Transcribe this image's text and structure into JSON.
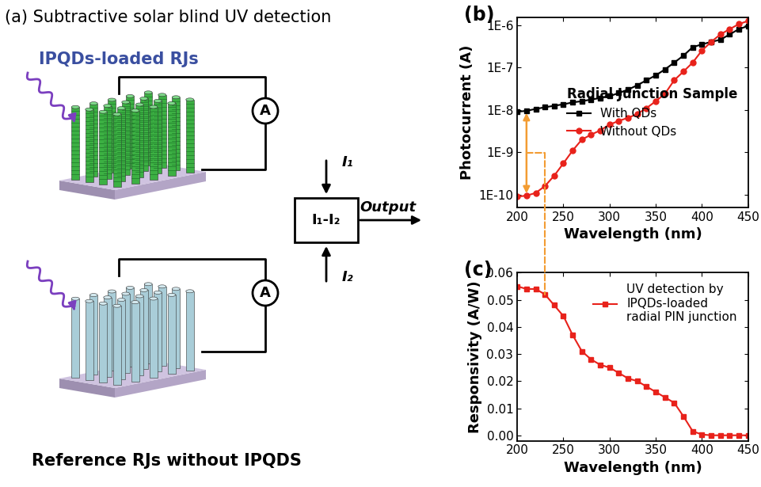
{
  "diagram": {
    "title": "(a) Subtractive solar blind UV detection",
    "top": {
      "label": "IPQDs-loaded RJs",
      "meter": "A",
      "current": "I₁"
    },
    "bottom": {
      "label": "Reference RJs without IPQDS",
      "meter": "A",
      "current": "I₂"
    },
    "box": "I₁-I₂",
    "output": "Output"
  },
  "chart_data": [
    {
      "type": "line",
      "panel": "(b)",
      "x_label": "Wavelength (nm)",
      "y_label": "Photocurrent (A)",
      "annotations": [
        "Radial Junction Sample"
      ],
      "log": "y",
      "x": [
        200,
        210,
        220,
        230,
        240,
        250,
        260,
        270,
        280,
        290,
        300,
        310,
        320,
        330,
        340,
        350,
        360,
        370,
        380,
        390,
        400,
        410,
        420,
        430,
        440,
        450
      ],
      "series": [
        {
          "name": "With QDs",
          "color": "#000000",
          "marker": "square",
          "line_style": "solid",
          "values": [
            9e-09,
            9.5e-09,
            1.05e-08,
            1.15e-08,
            1.25e-08,
            1.35e-08,
            1.5e-08,
            1.6e-08,
            1.75e-08,
            1.9e-08,
            2.1e-08,
            2.5e-08,
            3e-08,
            3.8e-08,
            5e-08,
            6.5e-08,
            9e-08,
            1.3e-07,
            1.9e-07,
            3e-07,
            3.5e-07,
            4e-07,
            4.5e-07,
            6e-07,
            8e-07,
            9.5e-07
          ]
        },
        {
          "name": "Without QDs",
          "color": "#e8221b",
          "marker": "circle",
          "line_style": "solid",
          "values": [
            9e-11,
            9.5e-11,
            1.1e-10,
            1.6e-10,
            2.8e-10,
            5.5e-10,
            1.1e-09,
            2e-09,
            2.6e-09,
            3.3e-09,
            4.5e-09,
            5.5e-09,
            6.5e-09,
            8e-09,
            1.1e-08,
            1.6e-08,
            2.4e-08,
            5e-08,
            8e-08,
            1.3e-07,
            2.5e-07,
            4e-07,
            6e-07,
            8e-07,
            1.05e-06,
            1.25e-06
          ]
        }
      ],
      "xlim": [
        200,
        450
      ],
      "xticks": [
        200,
        250,
        300,
        350,
        400,
        450
      ],
      "ylim": [
        5e-11,
        1.5e-06
      ],
      "yticks": [
        {
          "value": 1e-10,
          "label": "1E-10"
        },
        {
          "value": 1e-09,
          "label": "1E-9"
        },
        {
          "value": 1e-08,
          "label": "1E-8"
        },
        {
          "value": 1e-07,
          "label": "1E-7"
        },
        {
          "value": 1e-06,
          "label": "1E-6"
        }
      ],
      "legend": "center right"
    },
    {
      "type": "line",
      "panel": "(c)",
      "x_label": "Wavelength (nm)",
      "y_label": "Responsivity (A/W)",
      "x": [
        200,
        210,
        220,
        230,
        240,
        250,
        260,
        270,
        280,
        290,
        300,
        310,
        320,
        330,
        340,
        350,
        360,
        370,
        380,
        390,
        400,
        410,
        420,
        430,
        440,
        450
      ],
      "series": [
        {
          "name": "UV detection by\nIPQDs-loaded\nradial PIN junction",
          "color": "#e8221b",
          "marker": "square",
          "line_style": "solid",
          "values": [
            0.055,
            0.054,
            0.054,
            0.052,
            0.048,
            0.044,
            0.037,
            0.031,
            0.028,
            0.026,
            0.025,
            0.023,
            0.021,
            0.02,
            0.018,
            0.016,
            0.014,
            0.012,
            0.007,
            0.0015,
            0.0003,
            0,
            0,
            0,
            0,
            0
          ]
        }
      ],
      "xlim": [
        200,
        450
      ],
      "xticks": [
        200,
        250,
        300,
        350,
        400,
        450
      ],
      "ylim": [
        -0.002,
        0.06
      ],
      "yticks": [
        {
          "value": 0,
          "label": "0.00"
        },
        {
          "value": 0.01,
          "label": "0.01"
        },
        {
          "value": 0.02,
          "label": "0.02"
        },
        {
          "value": 0.03,
          "label": "0.03"
        },
        {
          "value": 0.04,
          "label": "0.04"
        },
        {
          "value": 0.05,
          "label": "0.05"
        },
        {
          "value": 0.06,
          "label": "0.06"
        }
      ],
      "legend": "upper right"
    }
  ]
}
